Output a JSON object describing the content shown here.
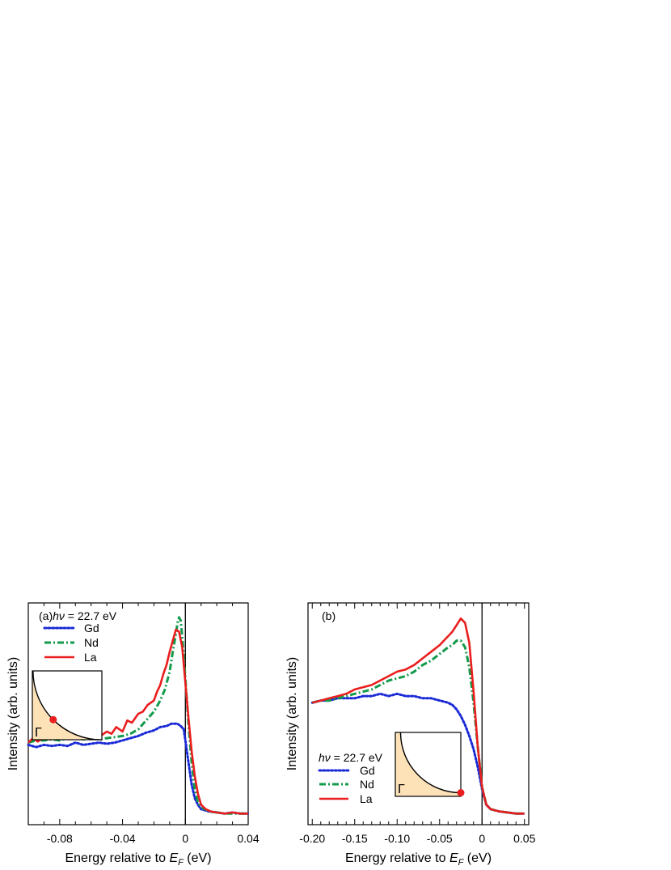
{
  "chart_data": [
    {
      "panel_label": "(a)",
      "type": "line",
      "xlabel_prefix": "Energy relative to ",
      "xlabel_var": "E",
      "xlabel_sub": "F",
      "xlabel_suffix": " (eV)",
      "ylabel": "Intensity (arb. units)",
      "xlim": [
        -0.1,
        0.04
      ],
      "ylim": [
        0,
        1
      ],
      "xticks": [
        -0.08,
        -0.04,
        0,
        0.04
      ],
      "xtick_labels": [
        "-0.08",
        "-0.04",
        "0",
        "0.04"
      ],
      "minor_step": 0.01,
      "legend_title_var": "hν",
      "legend_title_value": " = 22.7 eV",
      "legend_placement": "top-left",
      "vline_x": 0,
      "inset": {
        "label": "Γ",
        "marker": "mid-arc",
        "placement": "left"
      },
      "series": [
        {
          "name": "Gd",
          "style": "dotted",
          "color": "#1a2ad6",
          "x": [
            -0.1,
            -0.095,
            -0.09,
            -0.085,
            -0.08,
            -0.075,
            -0.07,
            -0.065,
            -0.06,
            -0.055,
            -0.05,
            -0.045,
            -0.04,
            -0.035,
            -0.03,
            -0.025,
            -0.02,
            -0.016,
            -0.012,
            -0.009,
            -0.007,
            -0.005,
            -0.003,
            -0.001,
            0.0,
            0.002,
            0.004,
            0.006,
            0.008,
            0.01,
            0.015,
            0.02,
            0.025,
            0.03,
            0.035,
            0.04
          ],
          "y": [
            0.36,
            0.35,
            0.36,
            0.355,
            0.36,
            0.355,
            0.37,
            0.36,
            0.365,
            0.37,
            0.365,
            0.37,
            0.38,
            0.39,
            0.4,
            0.415,
            0.425,
            0.44,
            0.445,
            0.455,
            0.455,
            0.455,
            0.445,
            0.43,
            0.38,
            0.28,
            0.18,
            0.12,
            0.09,
            0.07,
            0.06,
            0.055,
            0.05,
            0.055,
            0.05,
            0.05
          ]
        },
        {
          "name": "Nd",
          "style": "dashdot",
          "color": "#139a4b",
          "x": [
            -0.1,
            -0.095,
            -0.09,
            -0.085,
            -0.08,
            -0.075,
            -0.07,
            -0.065,
            -0.06,
            -0.055,
            -0.05,
            -0.045,
            -0.04,
            -0.035,
            -0.03,
            -0.025,
            -0.02,
            -0.016,
            -0.013,
            -0.01,
            -0.008,
            -0.006,
            -0.005,
            -0.004,
            -0.003,
            -0.002,
            0.0,
            0.002,
            0.004,
            0.006,
            0.008,
            0.01,
            0.015,
            0.02,
            0.025,
            0.03,
            0.035,
            0.04
          ],
          "y": [
            0.37,
            0.38,
            0.38,
            0.385,
            0.38,
            0.39,
            0.39,
            0.385,
            0.39,
            0.385,
            0.39,
            0.395,
            0.4,
            0.41,
            0.43,
            0.47,
            0.51,
            0.56,
            0.61,
            0.69,
            0.78,
            0.86,
            0.91,
            0.935,
            0.92,
            0.85,
            0.66,
            0.45,
            0.28,
            0.16,
            0.1,
            0.08,
            0.06,
            0.055,
            0.05,
            0.05,
            0.05,
            0.05
          ]
        },
        {
          "name": "La",
          "style": "solid",
          "color": "#ea1e1e",
          "x": [
            -0.1,
            -0.097,
            -0.094,
            -0.09,
            -0.087,
            -0.084,
            -0.08,
            -0.077,
            -0.074,
            -0.07,
            -0.067,
            -0.064,
            -0.06,
            -0.057,
            -0.054,
            -0.05,
            -0.047,
            -0.044,
            -0.04,
            -0.037,
            -0.034,
            -0.03,
            -0.027,
            -0.024,
            -0.02,
            -0.018,
            -0.016,
            -0.014,
            -0.012,
            -0.01,
            -0.008,
            -0.006,
            -0.004,
            -0.002,
            0.0,
            0.002,
            0.004,
            0.006,
            0.008,
            0.01,
            0.013,
            0.016,
            0.02,
            0.025,
            0.03,
            0.035,
            0.04
          ],
          "y": [
            0.37,
            0.39,
            0.375,
            0.395,
            0.385,
            0.4,
            0.39,
            0.405,
            0.385,
            0.4,
            0.39,
            0.405,
            0.39,
            0.41,
            0.4,
            0.42,
            0.41,
            0.44,
            0.42,
            0.47,
            0.46,
            0.5,
            0.51,
            0.54,
            0.56,
            0.6,
            0.63,
            0.68,
            0.72,
            0.78,
            0.83,
            0.88,
            0.87,
            0.8,
            0.64,
            0.48,
            0.33,
            0.22,
            0.14,
            0.09,
            0.07,
            0.06,
            0.055,
            0.05,
            0.055,
            0.05,
            0.05
          ]
        }
      ]
    },
    {
      "panel_label": "(b)",
      "type": "line",
      "xlabel_prefix": "Energy relative to ",
      "xlabel_var": "E",
      "xlabel_sub": "F",
      "xlabel_suffix": " (eV)",
      "ylabel": "Intensity (arb. units)",
      "xlim": [
        -0.205,
        0.055
      ],
      "ylim": [
        0,
        1
      ],
      "xticks": [
        -0.2,
        -0.15,
        -0.1,
        -0.05,
        0,
        0.05
      ],
      "xtick_labels": [
        "-0.20",
        "-0.15",
        "-0.10",
        "-0.05",
        "0",
        "0.05"
      ],
      "minor_step": 0.01,
      "legend_title_var": "hν",
      "legend_title_value": " = 22.7 eV",
      "legend_placement": "bottom-left",
      "vline_x": 0,
      "inset": {
        "label": "Γ",
        "marker": "arc-end",
        "placement": "bottom-center"
      },
      "series": [
        {
          "name": "Gd",
          "style": "dotted",
          "color": "#1a2ad6",
          "x": [
            -0.2,
            -0.19,
            -0.18,
            -0.17,
            -0.16,
            -0.15,
            -0.14,
            -0.13,
            -0.12,
            -0.11,
            -0.1,
            -0.09,
            -0.08,
            -0.07,
            -0.06,
            -0.05,
            -0.04,
            -0.035,
            -0.03,
            -0.025,
            -0.02,
            -0.015,
            -0.01,
            -0.005,
            0.0,
            0.005,
            0.01,
            0.02,
            0.03,
            0.04,
            0.05
          ],
          "y": [
            0.55,
            0.56,
            0.56,
            0.57,
            0.57,
            0.57,
            0.58,
            0.58,
            0.59,
            0.58,
            0.59,
            0.58,
            0.58,
            0.57,
            0.57,
            0.56,
            0.55,
            0.54,
            0.52,
            0.49,
            0.45,
            0.4,
            0.34,
            0.26,
            0.16,
            0.09,
            0.07,
            0.06,
            0.055,
            0.05,
            0.05
          ]
        },
        {
          "name": "Nd",
          "style": "dashdot",
          "color": "#139a4b",
          "x": [
            -0.2,
            -0.19,
            -0.18,
            -0.17,
            -0.16,
            -0.15,
            -0.14,
            -0.13,
            -0.12,
            -0.11,
            -0.1,
            -0.09,
            -0.08,
            -0.07,
            -0.06,
            -0.05,
            -0.04,
            -0.035,
            -0.03,
            -0.025,
            -0.02,
            -0.015,
            -0.01,
            -0.005,
            0.0,
            0.005,
            0.01,
            0.02,
            0.03,
            0.04,
            0.05
          ],
          "y": [
            0.55,
            0.56,
            0.56,
            0.57,
            0.58,
            0.59,
            0.6,
            0.61,
            0.63,
            0.65,
            0.66,
            0.67,
            0.69,
            0.72,
            0.74,
            0.77,
            0.8,
            0.81,
            0.83,
            0.83,
            0.8,
            0.71,
            0.55,
            0.35,
            0.17,
            0.09,
            0.07,
            0.06,
            0.055,
            0.05,
            0.05
          ]
        },
        {
          "name": "La",
          "style": "solid",
          "color": "#ea1e1e",
          "x": [
            -0.2,
            -0.19,
            -0.18,
            -0.17,
            -0.16,
            -0.15,
            -0.14,
            -0.13,
            -0.12,
            -0.11,
            -0.1,
            -0.09,
            -0.08,
            -0.07,
            -0.06,
            -0.05,
            -0.04,
            -0.035,
            -0.03,
            -0.025,
            -0.02,
            -0.015,
            -0.01,
            -0.005,
            0.0,
            0.005,
            0.01,
            0.02,
            0.03,
            0.04,
            0.05
          ],
          "y": [
            0.55,
            0.56,
            0.57,
            0.58,
            0.59,
            0.61,
            0.62,
            0.63,
            0.65,
            0.67,
            0.69,
            0.7,
            0.72,
            0.75,
            0.78,
            0.81,
            0.85,
            0.87,
            0.9,
            0.93,
            0.91,
            0.82,
            0.6,
            0.35,
            0.17,
            0.09,
            0.07,
            0.06,
            0.055,
            0.05,
            0.05
          ]
        }
      ]
    }
  ]
}
